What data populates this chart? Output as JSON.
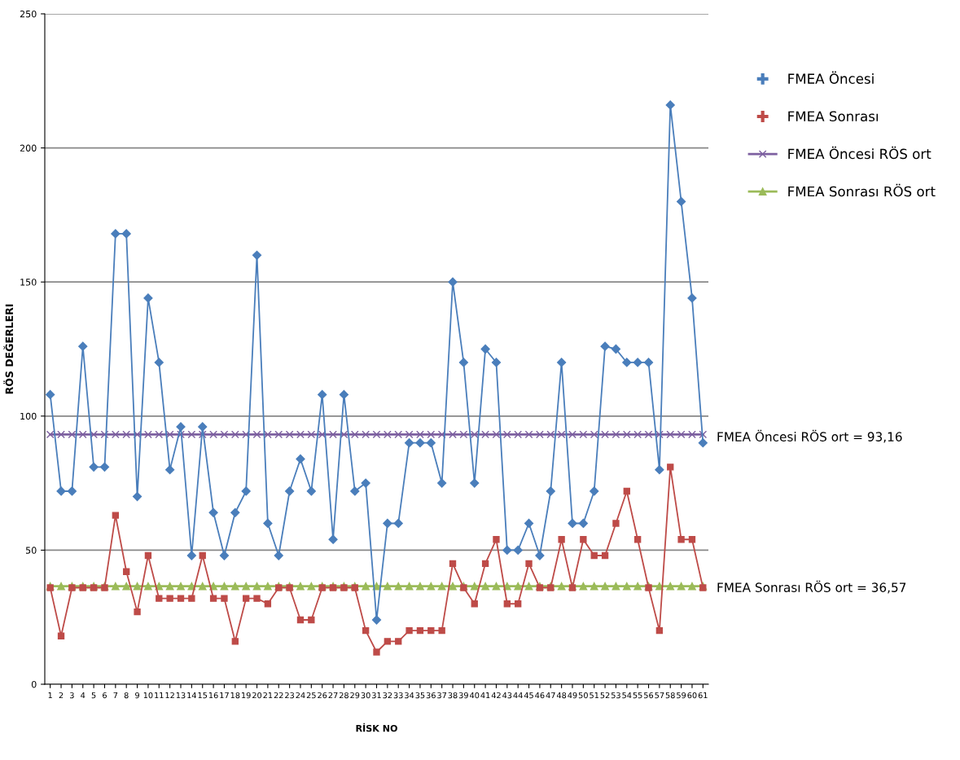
{
  "chart_data": {
    "type": "line",
    "xlabel": "RİSK NO",
    "ylabel": "RÖS DEĞERLERI",
    "categories": [
      "1",
      "2",
      "3",
      "4",
      "5",
      "6",
      "7",
      "8",
      "9",
      "10",
      "11",
      "12",
      "13",
      "14",
      "15",
      "16",
      "17",
      "18",
      "19",
      "20",
      "21",
      "22",
      "23",
      "24",
      "25",
      "26",
      "27",
      "28",
      "29",
      "30",
      "31",
      "32",
      "33",
      "34",
      "35",
      "36",
      "37",
      "38",
      "39",
      "40",
      "41",
      "42",
      "43",
      "44",
      "45",
      "46",
      "47",
      "48",
      "49",
      "50",
      "51",
      "52",
      "53",
      "54",
      "55",
      "56",
      "57",
      "58",
      "59",
      "60",
      "61"
    ],
    "series": [
      {
        "name": "FMEA Öncesi",
        "color": "#4a7ebb",
        "marker": "diamond",
        "values": [
          108,
          72,
          72,
          126,
          81,
          81,
          168,
          168,
          70,
          144,
          120,
          80,
          96,
          48,
          96,
          64,
          48,
          64,
          72,
          160,
          60,
          48,
          72,
          84,
          72,
          108,
          54,
          108,
          72,
          75,
          24,
          60,
          60,
          90,
          90,
          90,
          75,
          150,
          120,
          75,
          125,
          120,
          50,
          50,
          60,
          48,
          72,
          120,
          60,
          60,
          72,
          126,
          125,
          120,
          120,
          120,
          80,
          216,
          180,
          144,
          90
        ]
      },
      {
        "name": "FMEA Sonrası",
        "color": "#be4b48",
        "marker": "square",
        "values": [
          36,
          18,
          36,
          36,
          36,
          36,
          63,
          42,
          27,
          48,
          32,
          32,
          32,
          32,
          48,
          32,
          32,
          16,
          32,
          32,
          30,
          36,
          36,
          24,
          24,
          36,
          36,
          36,
          36,
          20,
          12,
          16,
          16,
          20,
          20,
          20,
          20,
          45,
          36,
          30,
          45,
          54,
          30,
          30,
          45,
          36,
          36,
          54,
          36,
          54,
          48,
          48,
          60,
          72,
          54,
          36,
          20,
          81,
          54,
          54,
          36
        ]
      },
      {
        "name": "FMEA Öncesi RÖS ort",
        "color": "#7d60a0",
        "marker": "cross",
        "values": [
          93.16,
          93.16,
          93.16,
          93.16,
          93.16,
          93.16,
          93.16,
          93.16,
          93.16,
          93.16,
          93.16,
          93.16,
          93.16,
          93.16,
          93.16,
          93.16,
          93.16,
          93.16,
          93.16,
          93.16,
          93.16,
          93.16,
          93.16,
          93.16,
          93.16,
          93.16,
          93.16,
          93.16,
          93.16,
          93.16,
          93.16,
          93.16,
          93.16,
          93.16,
          93.16,
          93.16,
          93.16,
          93.16,
          93.16,
          93.16,
          93.16,
          93.16,
          93.16,
          93.16,
          93.16,
          93.16,
          93.16,
          93.16,
          93.16,
          93.16,
          93.16,
          93.16,
          93.16,
          93.16,
          93.16,
          93.16,
          93.16,
          93.16,
          93.16,
          93.16,
          93.16
        ]
      },
      {
        "name": "FMEA Sonrası RÖS ort",
        "color": "#9bbb59",
        "marker": "triangle",
        "values": [
          36.57,
          36.57,
          36.57,
          36.57,
          36.57,
          36.57,
          36.57,
          36.57,
          36.57,
          36.57,
          36.57,
          36.57,
          36.57,
          36.57,
          36.57,
          36.57,
          36.57,
          36.57,
          36.57,
          36.57,
          36.57,
          36.57,
          36.57,
          36.57,
          36.57,
          36.57,
          36.57,
          36.57,
          36.57,
          36.57,
          36.57,
          36.57,
          36.57,
          36.57,
          36.57,
          36.57,
          36.57,
          36.57,
          36.57,
          36.57,
          36.57,
          36.57,
          36.57,
          36.57,
          36.57,
          36.57,
          36.57,
          36.57,
          36.57,
          36.57,
          36.57,
          36.57,
          36.57,
          36.57,
          36.57,
          36.57,
          36.57,
          36.57,
          36.57,
          36.57,
          36.57
        ]
      }
    ],
    "annotations": [
      "FMEA Öncesi RÖS ort = 93,16",
      "FMEA Sonrası RÖS ort = 36,57"
    ],
    "ylim": [
      0,
      250
    ],
    "yticks": [
      0,
      50,
      100,
      150,
      200,
      250
    ],
    "grid": "y",
    "legend": "top right"
  }
}
